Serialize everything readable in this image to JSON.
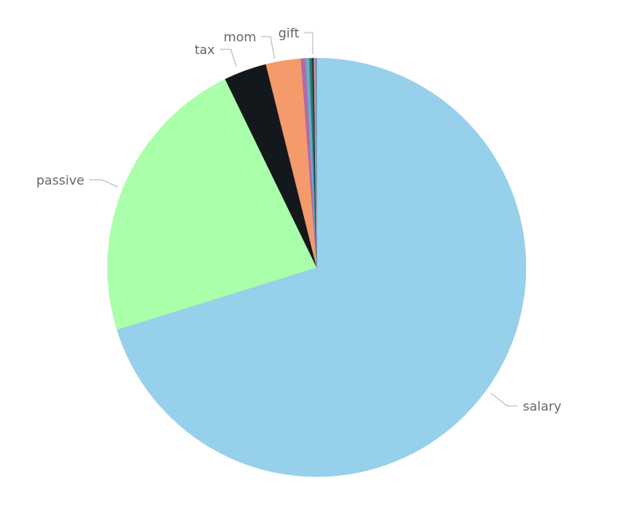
{
  "chart_data": {
    "type": "pie",
    "title": "",
    "legend": "none",
    "start": "top",
    "direction": "clockwise",
    "slices": [
      {
        "label": "salary",
        "value": 70.2,
        "color": "#97d0ea"
      },
      {
        "label": "passive",
        "value": 22.6,
        "color": "#aaffaa"
      },
      {
        "label": "tax",
        "value": 3.3,
        "color": "#12181c"
      },
      {
        "label": "mom",
        "value": 2.7,
        "color": "#f59a6b"
      },
      {
        "label": "",
        "value": 0.35,
        "color": "#b06aa8"
      },
      {
        "label": "",
        "value": 0.3,
        "color": "#6fa8c9"
      },
      {
        "label": "",
        "value": 0.2,
        "color": "#2a7a6a"
      },
      {
        "label": "",
        "value": 0.15,
        "color": "#1f3a4a"
      },
      {
        "label": "gift",
        "value": 0.1,
        "color": "#f0a0a0"
      },
      {
        "label": "",
        "value": 0.1,
        "color": "#6a8fb0"
      }
    ]
  }
}
